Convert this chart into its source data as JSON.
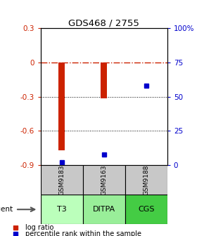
{
  "title": "GDS468 / 2755",
  "samples": [
    "GSM9183",
    "GSM9163",
    "GSM9188"
  ],
  "agents": [
    "T3",
    "DITPA",
    "CGS"
  ],
  "log_ratios": [
    -0.77,
    -0.315,
    0.0
  ],
  "percentile_ranks": [
    2,
    8,
    58
  ],
  "ylim_left": [
    -0.9,
    0.3
  ],
  "ylim_right": [
    0,
    100
  ],
  "right_ticks": [
    0,
    25,
    50,
    75,
    100
  ],
  "right_tick_labels": [
    "0",
    "25",
    "50",
    "75",
    "100%"
  ],
  "left_ticks": [
    -0.9,
    -0.6,
    -0.3,
    0.0,
    0.3
  ],
  "left_tick_labels": [
    "-0.9",
    "-0.6",
    "-0.3",
    "0",
    "0.3"
  ],
  "bar_color": "#cc2200",
  "dot_color": "#0000cc",
  "agent_colors": [
    "#bbffbb",
    "#99ee99",
    "#44cc44"
  ],
  "sample_bg": "#c8c8c8",
  "bar_width": 0.15
}
